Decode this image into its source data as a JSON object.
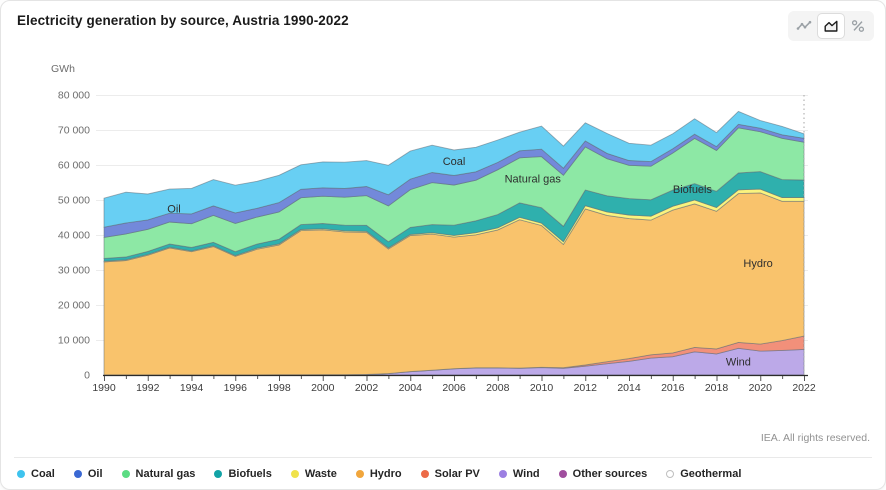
{
  "header": {
    "title": "Electricity generation by source, Austria 1990-2022"
  },
  "toolbar": {
    "buttons": [
      {
        "name": "line-chart",
        "active": false
      },
      {
        "name": "area-chart",
        "active": true
      },
      {
        "name": "percent",
        "active": false
      }
    ]
  },
  "chart_data": {
    "type": "area",
    "stacked": true,
    "title": "Electricity generation by source, Austria 1990-2022",
    "unit_label": "GWh",
    "ylim": [
      0,
      80000
    ],
    "ytick_step": 10000,
    "xtick_label_step": 2,
    "grid": true,
    "legend_position": "bottom",
    "end_marker_year": 2022,
    "x": [
      1990,
      1991,
      1992,
      1993,
      1994,
      1995,
      1996,
      1997,
      1998,
      1999,
      2000,
      2001,
      2002,
      2003,
      2004,
      2005,
      2006,
      2007,
      2008,
      2009,
      2010,
      2011,
      2012,
      2013,
      2014,
      2015,
      2016,
      2017,
      2018,
      2019,
      2020,
      2021,
      2022
    ],
    "stack_order": [
      "Geothermal",
      "Other sources",
      "Wind",
      "Solar PV",
      "Hydro",
      "Waste",
      "Biofuels",
      "Natural gas",
      "Oil",
      "Coal"
    ],
    "series": [
      {
        "name": "Coal",
        "dot": "#3EC3EE",
        "fill": "#68CFF3",
        "values": [
          8300,
          8800,
          7400,
          6900,
          7300,
          7500,
          7900,
          7700,
          7800,
          7000,
          7400,
          7500,
          7400,
          8400,
          8000,
          7800,
          7300,
          7000,
          6400,
          5300,
          6600,
          6300,
          5200,
          5700,
          4900,
          4700,
          4300,
          4400,
          4000,
          3700,
          2200,
          2400,
          1300
        ]
      },
      {
        "name": "Oil",
        "dot": "#3A68D3",
        "fill": "#7389DA",
        "values": [
          2900,
          3100,
          2700,
          2500,
          2800,
          2700,
          3000,
          2500,
          2700,
          2400,
          2400,
          2500,
          2600,
          3200,
          3000,
          2900,
          2700,
          2400,
          2100,
          2000,
          2100,
          2000,
          1700,
          1500,
          1400,
          1300,
          1200,
          1200,
          1100,
          1000,
          1000,
          1000,
          1100
        ]
      },
      {
        "name": "Natural gas",
        "dot": "#5BDC83",
        "fill": "#8DE8A5",
        "values": [
          6000,
          6600,
          6300,
          6300,
          6800,
          7700,
          8100,
          7700,
          7800,
          7700,
          7800,
          8000,
          8500,
          10200,
          10800,
          12000,
          11500,
          11600,
          12800,
          12900,
          14600,
          14600,
          12300,
          10600,
          9500,
          9600,
          10600,
          12900,
          11700,
          12900,
          11400,
          11800,
          10800
        ]
      },
      {
        "name": "Biofuels",
        "dot": "#12A3A6",
        "fill": "#2FB0AD",
        "values": [
          800,
          800,
          900,
          900,
          1000,
          1000,
          1100,
          1200,
          1300,
          1400,
          1500,
          1600,
          1700,
          1800,
          2000,
          2300,
          2900,
          3400,
          3800,
          4100,
          4400,
          4400,
          4500,
          4600,
          4700,
          4700,
          4600,
          4700,
          4600,
          4800,
          5000,
          5100,
          5000
        ]
      },
      {
        "name": "Waste",
        "dot": "#F0E24B",
        "fill": "#FAF37E",
        "values": [
          200,
          200,
          200,
          200,
          200,
          200,
          200,
          300,
          300,
          300,
          300,
          300,
          300,
          300,
          300,
          400,
          500,
          600,
          600,
          700,
          700,
          800,
          900,
          1000,
          1000,
          1100,
          1100,
          1100,
          1100,
          1100,
          1100,
          1100,
          1100
        ]
      },
      {
        "name": "Hydro",
        "dot": "#F1A63C",
        "fill": "#F9C36C",
        "values": [
          32300,
          32700,
          34200,
          36300,
          35200,
          36700,
          33900,
          35900,
          37100,
          41200,
          41400,
          40800,
          40600,
          35600,
          38900,
          38900,
          37600,
          38000,
          39400,
          42400,
          40500,
          35200,
          44600,
          41800,
          40000,
          38500,
          40800,
          41000,
          39300,
          42500,
          43200,
          39800,
          38500
        ]
      },
      {
        "name": "Solar PV",
        "dot": "#EC6A47",
        "fill": "#F2907A",
        "values": [
          0,
          0,
          0,
          0,
          0,
          0,
          0,
          0,
          0,
          0,
          0,
          0,
          10,
          10,
          20,
          20,
          20,
          30,
          30,
          50,
          90,
          170,
          340,
          580,
          780,
          940,
          1100,
          1270,
          1440,
          1700,
          2000,
          2800,
          3800
        ]
      },
      {
        "name": "Wind",
        "dot": "#9C7FE2",
        "fill": "#BCA9E8",
        "values": [
          0,
          0,
          0,
          0,
          0,
          0,
          0,
          20,
          50,
          50,
          70,
          70,
          140,
          370,
          930,
          1330,
          1750,
          2020,
          2000,
          1900,
          2100,
          1900,
          2500,
          3200,
          3900,
          4800,
          5200,
          6600,
          6000,
          7600,
          6800,
          7000,
          7300
        ]
      },
      {
        "name": "Other sources",
        "dot": "#A04E9E",
        "fill": "#A04E9E",
        "values": [
          20,
          20,
          20,
          20,
          20,
          20,
          20,
          20,
          20,
          20,
          20,
          20,
          20,
          20,
          20,
          20,
          20,
          20,
          20,
          20,
          20,
          20,
          20,
          20,
          20,
          20,
          20,
          20,
          20,
          20,
          20,
          20,
          20
        ]
      },
      {
        "name": "Geothermal",
        "dot": "#FFFFFF",
        "dot_border": "#BFBFBF",
        "fill": "#E8E8E8",
        "values": [
          0,
          0,
          0,
          0,
          0,
          0,
          0,
          0,
          0,
          0,
          0,
          0,
          0,
          0,
          0,
          0,
          0,
          0,
          0,
          0,
          0,
          0,
          0,
          0,
          0,
          0,
          0,
          0,
          0,
          0,
          0,
          0,
          0
        ]
      }
    ],
    "annotations": [
      {
        "label": "Oil",
        "year": 1993.2,
        "gwh": 47500
      },
      {
        "label": "Coal",
        "year": 2006.0,
        "gwh": 61000
      },
      {
        "label": "Natural gas",
        "year": 2009.6,
        "gwh": 56000
      },
      {
        "label": "Biofuels",
        "year": 2016.9,
        "gwh": 53000
      },
      {
        "label": "Hydro",
        "year": 2019.9,
        "gwh": 31800
      },
      {
        "label": "Wind",
        "year": 2019.0,
        "gwh": 3700
      }
    ]
  },
  "footer": {
    "credit": "IEA. All rights reserved."
  }
}
